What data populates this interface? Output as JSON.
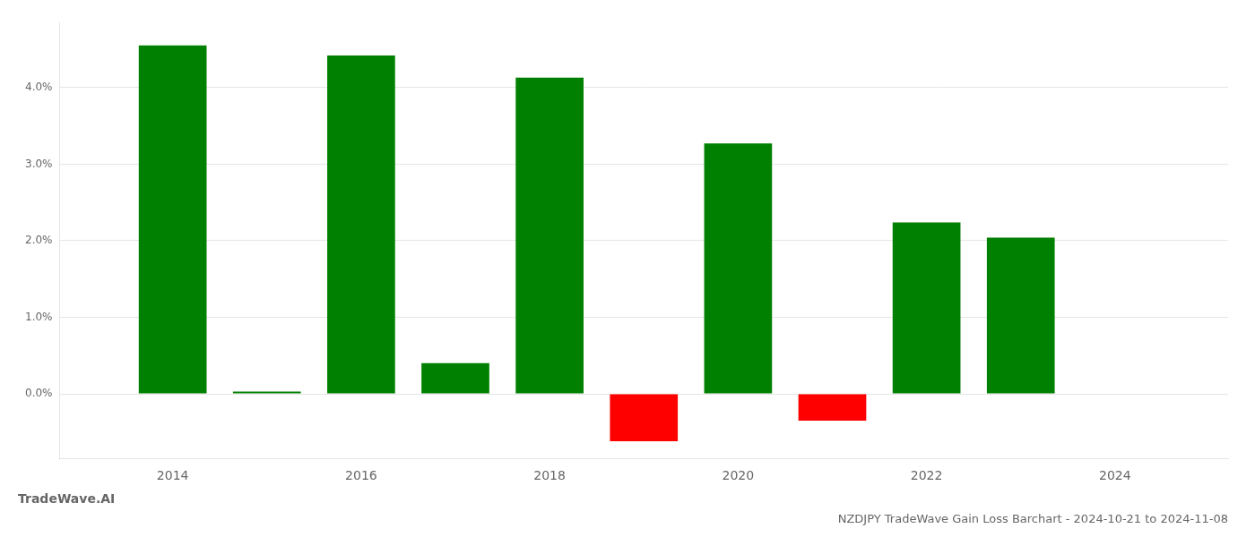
{
  "chart_data": {
    "type": "bar",
    "title": "NZDJPY TradeWave Gain Loss Barchart - 2024-10-21 to 2024-11-08",
    "annotations": [
      "TradeWave.AI"
    ],
    "x": [
      2014,
      2015,
      2016,
      2017,
      2018,
      2019,
      2020,
      2021,
      2022,
      2023
    ],
    "values": [
      4.55,
      0.03,
      4.42,
      0.4,
      4.13,
      -0.62,
      3.27,
      -0.35,
      2.24,
      2.04
    ],
    "colors": [
      "#008000",
      "#008000",
      "#008000",
      "#008000",
      "#008000",
      "#ff0000",
      "#008000",
      "#ff0000",
      "#008000",
      "#008000"
    ],
    "xlim": [
      2012.8,
      2025.2
    ],
    "xticks": [
      2014,
      2016,
      2018,
      2020,
      2022,
      2024
    ],
    "ylim": [
      -0.85,
      4.85
    ],
    "yticks": [
      {
        "value": 0.0,
        "label": "0.0%"
      },
      {
        "value": 1.0,
        "label": "1.0%"
      },
      {
        "value": 2.0,
        "label": "2.0%"
      },
      {
        "value": 3.0,
        "label": "3.0%"
      },
      {
        "value": 4.0,
        "label": "4.0%"
      }
    ],
    "grid": true
  }
}
